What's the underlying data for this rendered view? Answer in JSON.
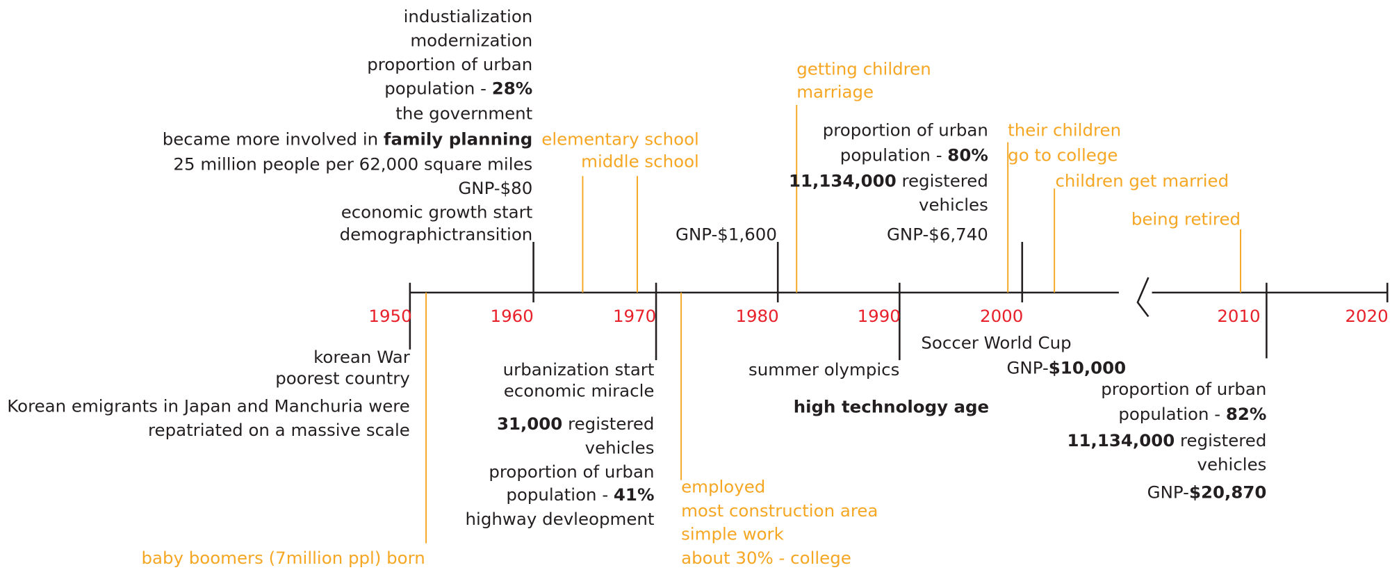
{
  "years": [
    "1950",
    "1960",
    "1970",
    "1980",
    "1990",
    "2000",
    "2010",
    "2020"
  ],
  "notes": [
    {
      "lines": [
        [
          "industialization"
        ],
        [
          "modernization"
        ],
        [
          "proportion of urban"
        ],
        [
          "population - ",
          {
            "bold": "28%"
          }
        ],
        [
          "the government"
        ],
        [
          "became more involved in ",
          {
            "bold": "family planning"
          }
        ],
        [
          "25 million people per 62,000 square miles"
        ],
        [
          "GNP-$80"
        ],
        [
          "economic growth start"
        ],
        [
          "demographictransition"
        ]
      ]
    },
    {
      "lines": [
        [
          "elementary school"
        ],
        [
          "middle school"
        ]
      ]
    },
    {
      "lines": [
        [
          "GNP-$1,600"
        ]
      ]
    },
    {
      "lines": [
        [
          "getting children"
        ],
        [
          "marriage"
        ]
      ]
    },
    {
      "lines": [
        [
          "proportion of urban"
        ],
        [
          "population - ",
          {
            "bold": "80%"
          }
        ],
        [
          {
            "bold": "11,134,000"
          },
          " registered"
        ],
        [
          "vehicles"
        ],
        [
          "GNP-$6,740"
        ]
      ]
    },
    {
      "lines": [
        [
          "their children"
        ],
        [
          "go to college"
        ]
      ]
    },
    {
      "lines": [
        [
          "children get married"
        ]
      ]
    },
    {
      "lines": [
        [
          "being retired"
        ]
      ]
    },
    {
      "lines": [
        [
          "korean War"
        ],
        [
          "poorest country"
        ],
        [
          "Korean emigrants in Japan and Manchuria were"
        ],
        [
          "repatriated on a massive scale"
        ]
      ]
    },
    {
      "lines": [
        [
          "urbanization start"
        ],
        [
          "economic miracle"
        ],
        [
          {
            "bold": "31,000"
          },
          " registered"
        ],
        [
          "vehicles"
        ],
        [
          "proportion of urban"
        ],
        [
          "population - ",
          {
            "bold": "41%"
          }
        ],
        [
          "highway devleopment"
        ]
      ]
    },
    {
      "lines": [
        [
          "employed"
        ],
        [
          "most construction area"
        ],
        [
          "simple work"
        ],
        [
          "about 30% - college"
        ]
      ]
    },
    {
      "lines": [
        [
          "baby boomers (7million ppl) born"
        ]
      ]
    },
    {
      "lines": [
        [
          "summer olympics"
        ]
      ]
    },
    {
      "lines": [
        [
          {
            "bold": "high technology age"
          }
        ]
      ]
    },
    {
      "lines": [
        [
          "Soccer World Cup"
        ]
      ]
    },
    {
      "lines": [
        [
          "GNP-",
          {
            "bold": "$10,000"
          }
        ]
      ]
    },
    {
      "lines": [
        [
          "proportion of urban"
        ],
        [
          "population - ",
          {
            "bold": "82%"
          }
        ],
        [
          {
            "bold": "11,134,000"
          },
          " registered"
        ],
        [
          "vehicles"
        ],
        [
          "GNP-",
          {
            "bold": "$20,870"
          }
        ]
      ]
    }
  ]
}
